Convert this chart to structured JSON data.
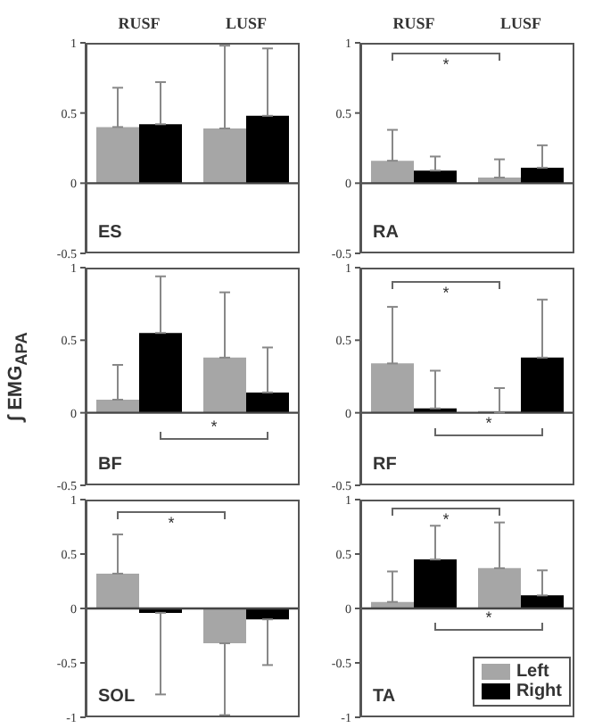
{
  "chart_data": [
    {
      "type": "bar",
      "title": "ES",
      "categories": [
        "RUSF",
        "LUSF"
      ],
      "ylim": [
        -0.5,
        1
      ],
      "yticks": [
        -0.5,
        0,
        0.5,
        1
      ],
      "ref_lines": [
        {
          "axis": "y",
          "value": 0
        }
      ],
      "series": [
        {
          "color": "#a6a6a6",
          "values": [
            0.4,
            0.39
          ],
          "errors": [
            [
              0.4,
              0.68
            ],
            [
              0.39,
              0.98
            ]
          ]
        },
        {
          "color": "#000000",
          "values": [
            0.42,
            0.48
          ],
          "errors": [
            [
              0.42,
              0.72
            ],
            [
              0.48,
              0.96
            ]
          ]
        }
      ]
    },
    {
      "type": "bar",
      "title": "RA",
      "categories": [
        "RUSF",
        "LUSF"
      ],
      "ylim": [
        -0.5,
        1
      ],
      "yticks": [
        -0.5,
        0,
        0.5,
        1
      ],
      "ref_lines": [
        {
          "axis": "y",
          "value": 0
        }
      ],
      "annotations": [
        "*"
      ],
      "series": [
        {
          "color": "#a6a6a6",
          "values": [
            0.16,
            0.04
          ],
          "errors": [
            [
              0.16,
              0.38
            ],
            [
              0.04,
              0.17
            ]
          ]
        },
        {
          "color": "#000000",
          "values": [
            0.09,
            0.11
          ],
          "errors": [
            [
              0.09,
              0.19
            ],
            [
              0.11,
              0.27
            ]
          ]
        }
      ]
    },
    {
      "type": "bar",
      "title": "BF",
      "ylabel": "∫ EMG$_{APA}$",
      "categories": [
        null,
        null
      ],
      "tick_labels": "y",
      "ylim": [
        -0.5,
        1
      ],
      "yticks": [
        -0.5,
        0,
        0.5,
        1
      ],
      "ref_lines": [
        {
          "axis": "y",
          "value": 0
        }
      ],
      "annotations": [
        "*"
      ],
      "series": [
        {
          "color": "#a6a6a6",
          "values": [
            0.09,
            0.38
          ],
          "errors": [
            [
              0.09,
              0.33
            ],
            [
              0.38,
              0.83
            ]
          ]
        },
        {
          "color": "#000000",
          "values": [
            0.55,
            0.14
          ],
          "errors": [
            [
              0.55,
              0.94
            ],
            [
              0.14,
              0.45
            ]
          ]
        }
      ]
    },
    {
      "type": "bar",
      "title": "RF",
      "categories": [
        null,
        null
      ],
      "tick_labels": "y",
      "ylim": [
        -0.5,
        1
      ],
      "yticks": [
        -0.5,
        0,
        0.5,
        1
      ],
      "ref_lines": [
        {
          "axis": "y",
          "value": 0
        }
      ],
      "annotations": [
        "*",
        "*"
      ],
      "series": [
        {
          "color": "#a6a6a6",
          "values": [
            0.34,
            0
          ],
          "errors": [
            [
              0.34,
              0.73
            ],
            [
              0,
              0.17
            ]
          ]
        },
        {
          "color": "#000000",
          "values": [
            0.03,
            0.38
          ],
          "errors": [
            [
              0.03,
              0.29
            ],
            [
              0.38,
              0.78
            ]
          ]
        }
      ]
    },
    {
      "type": "bar",
      "title": "SOL",
      "categories": [
        null,
        null
      ],
      "tick_labels": "y",
      "ylim": [
        -1,
        1
      ],
      "yticks": [
        -1,
        -0.5,
        0,
        0.5,
        1
      ],
      "ref_lines": [
        {
          "axis": "y",
          "value": 0
        }
      ],
      "annotations": [
        "*"
      ],
      "series": [
        {
          "color": "#a6a6a6",
          "values": [
            0.32,
            -0.32
          ],
          "errors": [
            [
              0.32,
              0.68
            ],
            [
              -0.98,
              -0.32
            ]
          ]
        },
        {
          "color": "#000000",
          "values": [
            -0.04,
            -0.1
          ],
          "errors": [
            [
              -0.79,
              -0.04
            ],
            [
              -0.52,
              -0.1
            ]
          ]
        }
      ]
    },
    {
      "type": "bar",
      "title": "TA",
      "categories": [
        null,
        null
      ],
      "tick_labels": "y",
      "legend": "bottom right",
      "ylim": [
        -1,
        1
      ],
      "yticks": [
        -1,
        -0.5,
        0,
        0.5,
        1
      ],
      "ref_lines": [
        {
          "axis": "y",
          "value": 0
        }
      ],
      "annotations": [
        "*",
        "*"
      ],
      "series": [
        {
          "name": "Left",
          "color": "#a6a6a6",
          "values": [
            0.06,
            0.37
          ],
          "errors": [
            [
              0.06,
              0.34
            ],
            [
              0.37,
              0.79
            ]
          ]
        },
        {
          "name": "Right",
          "color": "#000000",
          "values": [
            0.45,
            0.12
          ],
          "errors": [
            [
              0.45,
              0.76
            ],
            [
              0.12,
              0.35
            ]
          ]
        }
      ]
    }
  ]
}
